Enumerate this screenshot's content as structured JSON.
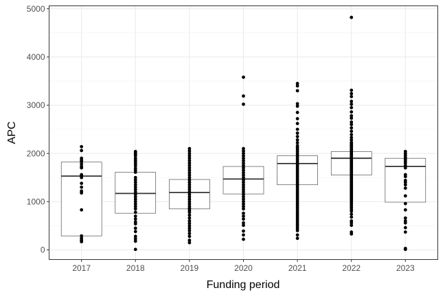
{
  "chart_data": {
    "type": "box",
    "xlabel": "Funding period",
    "ylabel": "APC",
    "ylim": [
      -200,
      5060
    ],
    "yticks": [
      0,
      1000,
      2000,
      3000,
      4000,
      5000
    ],
    "ytick_labels": [
      "0",
      "1000",
      "2000",
      "3000",
      "4000",
      "5000"
    ],
    "grid": true,
    "categories": [
      "2017",
      "2018",
      "2019",
      "2020",
      "2021",
      "2022",
      "2023"
    ],
    "boxes": [
      {
        "category": "2017",
        "q1": 290,
        "median": 1530,
        "q3": 1820
      },
      {
        "category": "2018",
        "q1": 760,
        "median": 1170,
        "q3": 1610
      },
      {
        "category": "2019",
        "q1": 850,
        "median": 1190,
        "q3": 1460
      },
      {
        "category": "2020",
        "q1": 1160,
        "median": 1470,
        "q3": 1730
      },
      {
        "category": "2021",
        "q1": 1350,
        "median": 1790,
        "q3": 1950
      },
      {
        "category": "2022",
        "q1": 1550,
        "median": 1900,
        "q3": 2040
      },
      {
        "category": "2023",
        "q1": 990,
        "median": 1730,
        "q3": 1900
      }
    ],
    "points": [
      {
        "category": "2017",
        "values": [
          2140,
          2060,
          1900,
          1860,
          1830,
          1780,
          1730,
          1700,
          1560,
          1540,
          1500,
          1380,
          1300,
          1220,
          1180,
          830,
          290,
          240,
          200,
          170
        ]
      },
      {
        "category": "2018",
        "values": [
          2040,
          2010,
          1980,
          1950,
          1900,
          1860,
          1820,
          1780,
          1740,
          1690,
          1650,
          1610,
          1500,
          1450,
          1400,
          1350,
          1300,
          1250,
          1200,
          1150,
          1100,
          1050,
          1000,
          950,
          900,
          850,
          780,
          700,
          640,
          580,
          540,
          450,
          380,
          280,
          230,
          180,
          10
        ]
      },
      {
        "category": "2019",
        "values": [
          2100,
          2050,
          2000,
          1950,
          1900,
          1850,
          1800,
          1750,
          1700,
          1650,
          1600,
          1550,
          1500,
          1450,
          1400,
          1350,
          1300,
          1250,
          1200,
          1150,
          1100,
          1050,
          1000,
          950,
          900,
          860,
          820,
          780,
          720,
          660,
          600,
          550,
          500,
          450,
          400,
          340,
          280,
          200,
          150
        ]
      },
      {
        "category": "2020",
        "values": [
          3580,
          3190,
          3020,
          2100,
          2050,
          2000,
          1950,
          1900,
          1850,
          1800,
          1750,
          1700,
          1650,
          1600,
          1550,
          1500,
          1450,
          1400,
          1350,
          1300,
          1250,
          1200,
          1150,
          1100,
          1050,
          1000,
          950,
          900,
          850,
          760,
          700,
          640,
          560,
          510,
          390,
          310,
          220
        ]
      },
      {
        "category": "2021",
        "values": [
          3450,
          3400,
          3300,
          3030,
          2980,
          2850,
          2720,
          2620,
          2500,
          2420,
          2350,
          2280,
          2220,
          2160,
          2120,
          2080,
          2040,
          2000,
          1960,
          1920,
          1880,
          1840,
          1800,
          1760,
          1720,
          1680,
          1640,
          1600,
          1560,
          1520,
          1480,
          1440,
          1400,
          1360,
          1320,
          1280,
          1240,
          1200,
          1160,
          1120,
          1080,
          1040,
          1000,
          960,
          920,
          880,
          840,
          800,
          760,
          720,
          680,
          640,
          600,
          560,
          520,
          480,
          440,
          400,
          310,
          240
        ]
      },
      {
        "category": "2022",
        "values": [
          4820,
          3310,
          3240,
          3180,
          3080,
          3020,
          2950,
          2860,
          2780,
          2730,
          2650,
          2600,
          2530,
          2460,
          2390,
          2330,
          2280,
          2230,
          2200,
          2170,
          2140,
          2110,
          2080,
          2050,
          2020,
          1990,
          1960,
          1930,
          1900,
          1870,
          1840,
          1810,
          1780,
          1750,
          1720,
          1690,
          1660,
          1630,
          1600,
          1570,
          1540,
          1510,
          1480,
          1450,
          1420,
          1390,
          1360,
          1330,
          1300,
          1270,
          1240,
          1210,
          1180,
          1150,
          1120,
          1090,
          1060,
          1030,
          1000,
          960,
          920,
          880,
          840,
          800,
          740,
          680,
          600,
          560,
          510,
          370,
          330
        ]
      },
      {
        "category": "2023",
        "values": [
          2040,
          2000,
          1960,
          1920,
          1880,
          1840,
          1800,
          1750,
          1700,
          1560,
          1520,
          1440,
          1400,
          1350,
          1280,
          1120,
          960,
          830,
          660,
          600,
          560,
          460,
          370,
          30,
          10
        ]
      }
    ]
  }
}
